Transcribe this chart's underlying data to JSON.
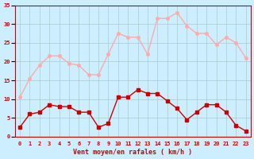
{
  "hours": [
    0,
    1,
    2,
    3,
    4,
    5,
    6,
    7,
    8,
    9,
    10,
    11,
    12,
    13,
    14,
    15,
    16,
    17,
    18,
    19,
    20,
    21,
    22,
    23
  ],
  "wind_avg": [
    2.5,
    6,
    6.5,
    8.5,
    8,
    8,
    6.5,
    6.5,
    2.5,
    3.5,
    10.5,
    10.5,
    12.5,
    11.5,
    11.5,
    9.5,
    7.5,
    4.5,
    6.5,
    8.5,
    8.5,
    6.5,
    3,
    1.5
  ],
  "wind_gust": [
    10.5,
    15.5,
    19,
    21.5,
    21.5,
    19.5,
    19,
    16.5,
    16.5,
    22,
    27.5,
    26.5,
    26.5,
    22,
    31.5,
    31.5,
    33,
    29.5,
    27.5,
    27.5,
    24.5,
    26.5,
    25,
    21
  ],
  "avg_color": "#cc0000",
  "gust_color": "#ffaaaa",
  "bg_color": "#cceeff",
  "grid_color": "#aacccc",
  "tick_color": "#cc0000",
  "xlabel": "Vent moyen/en rafales ( km/h )",
  "ylim": [
    0,
    35
  ],
  "yticks": [
    0,
    5,
    10,
    15,
    20,
    25,
    30,
    35
  ],
  "marker_size": 2.5,
  "line_width": 1.0
}
